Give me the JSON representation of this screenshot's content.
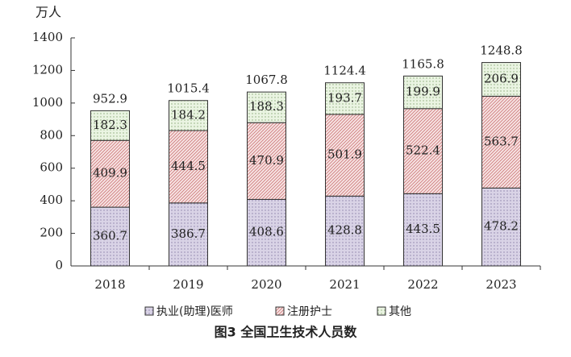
{
  "chart_data": {
    "type": "stacked_bar",
    "title": "图3 全国卫生技术人员数",
    "y_label": "万人",
    "categories": [
      "2018",
      "2019",
      "2020",
      "2021",
      "2022",
      "2023"
    ],
    "series": [
      {
        "name": "执业(助理)医师",
        "color": "#d9d3e6",
        "values": [
          360.7,
          386.7,
          408.6,
          428.8,
          443.5,
          478.2
        ]
      },
      {
        "name": "注册护士",
        "color": "#f7e4e4",
        "values": [
          409.9,
          444.5,
          470.9,
          501.9,
          522.4,
          563.7
        ]
      },
      {
        "name": "其他",
        "color": "#eaf4e2",
        "values": [
          182.3,
          184.2,
          188.3,
          193.7,
          199.9,
          206.9
        ]
      }
    ],
    "totals": [
      952.9,
      1015.4,
      1067.8,
      1124.4,
      1165.8,
      1248.8
    ],
    "ylim": [
      0,
      1400
    ],
    "yticks": [
      0,
      200,
      400,
      600,
      800,
      1000,
      1200,
      1400
    ]
  }
}
